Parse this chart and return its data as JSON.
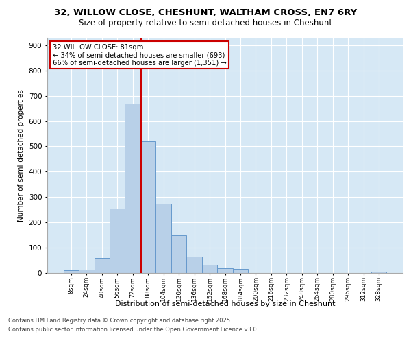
{
  "title_line1": "32, WILLOW CLOSE, CHESHUNT, WALTHAM CROSS, EN7 6RY",
  "title_line2": "Size of property relative to semi-detached houses in Cheshunt",
  "xlabel": "Distribution of semi-detached houses by size in Cheshunt",
  "ylabel": "Number of semi-detached properties",
  "bin_labels": [
    "8sqm",
    "24sqm",
    "40sqm",
    "56sqm",
    "72sqm",
    "88sqm",
    "104sqm",
    "120sqm",
    "136sqm",
    "152sqm",
    "168sqm",
    "184sqm",
    "200sqm",
    "216sqm",
    "232sqm",
    "248sqm",
    "264sqm",
    "280sqm",
    "296sqm",
    "312sqm",
    "328sqm"
  ],
  "bar_values": [
    10,
    12,
    58,
    255,
    668,
    520,
    272,
    148,
    65,
    30,
    18,
    15,
    0,
    0,
    0,
    0,
    0,
    0,
    0,
    0,
    5
  ],
  "bar_color": "#b8d0e8",
  "bar_edge_color": "#6699cc",
  "background_color": "#d6e8f5",
  "grid_color": "#ffffff",
  "annotation_title": "32 WILLOW CLOSE: 81sqm",
  "annotation_line2": "← 34% of semi-detached houses are smaller (693)",
  "annotation_line3": "66% of semi-detached houses are larger (1,351) →",
  "vline_color": "#cc0000",
  "annotation_box_color": "#ffffff",
  "annotation_box_edge": "#cc0000",
  "footer_line1": "Contains HM Land Registry data © Crown copyright and database right 2025.",
  "footer_line2": "Contains public sector information licensed under the Open Government Licence v3.0.",
  "ylim": [
    0,
    930
  ],
  "yticks": [
    0,
    100,
    200,
    300,
    400,
    500,
    600,
    700,
    800,
    900
  ],
  "vline_x": 4.56
}
